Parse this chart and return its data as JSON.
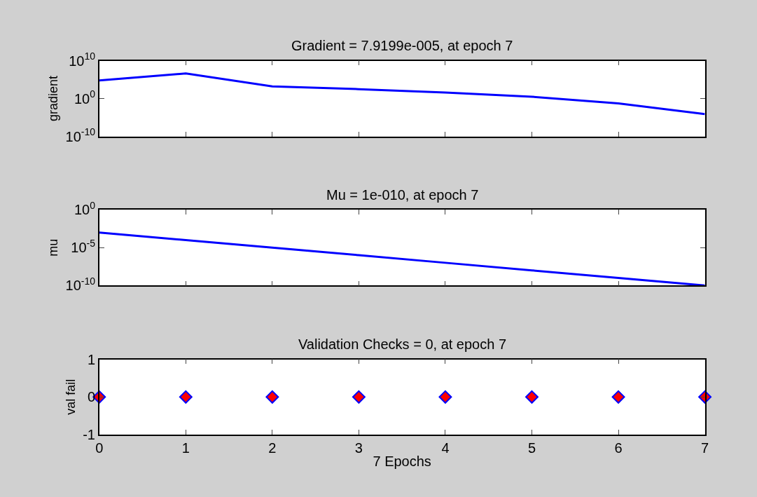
{
  "chart_data": [
    {
      "type": "line",
      "title": "Gradient = 7.9199e-005, at epoch 7",
      "ylabel": "gradient",
      "x": [
        0,
        1,
        2,
        3,
        4,
        5,
        6,
        7
      ],
      "series": [
        {
          "color": "#0000ff",
          "values": [
            60000,
            4000000,
            1600,
            300,
            40,
            3,
            0.05,
            7.9199e-05
          ]
        }
      ],
      "log": "y",
      "xlim": [
        0,
        7
      ],
      "xticks": [
        0,
        1,
        2,
        3,
        4,
        5,
        6,
        7
      ],
      "ylim": [
        1e-10,
        10000000000
      ],
      "yticks": [
        {
          "value": 1e-10,
          "label": "10$^{-10}$"
        },
        {
          "value": 1,
          "label": "10$^{0}$"
        },
        {
          "value": 10000000000,
          "label": "10$^{10}$"
        }
      ],
      "tick_labels": "y",
      "marker": "none",
      "line_style": "solid"
    },
    {
      "type": "line",
      "title": "Mu = 1e-010, at epoch 7",
      "ylabel": "mu",
      "x": [
        0,
        1,
        2,
        3,
        4,
        5,
        6,
        7
      ],
      "series": [
        {
          "color": "#0000ff",
          "values": [
            0.001,
            0.0001,
            1e-05,
            1e-06,
            1e-07,
            1e-08,
            1e-09,
            1e-10
          ]
        }
      ],
      "log": "y",
      "xlim": [
        0,
        7
      ],
      "xticks": [
        0,
        1,
        2,
        3,
        4,
        5,
        6,
        7
      ],
      "ylim": [
        1e-10,
        1
      ],
      "yticks": [
        {
          "value": 1e-10,
          "label": "10$^{-10}$"
        },
        {
          "value": 1e-05,
          "label": "10$^{-5}$"
        },
        {
          "value": 1,
          "label": "10$^{0}$"
        }
      ],
      "tick_labels": "y",
      "marker": "none",
      "line_style": "solid"
    },
    {
      "type": "scatter",
      "title": "Validation Checks = 0, at epoch 7",
      "ylabel": "val fail",
      "xlabel": "7 Epochs",
      "x": [
        0,
        1,
        2,
        3,
        4,
        5,
        6,
        7
      ],
      "series": [
        {
          "color": "#ff0000",
          "values": [
            0,
            0,
            0,
            0,
            0,
            0,
            0,
            0
          ]
        }
      ],
      "xlim": [
        0,
        7
      ],
      "xticks": [
        0,
        1,
        2,
        3,
        4,
        5,
        6,
        7
      ],
      "ylim": [
        -1,
        1
      ],
      "yticks": [
        -1,
        0,
        1
      ],
      "marker": "diamond"
    }
  ]
}
